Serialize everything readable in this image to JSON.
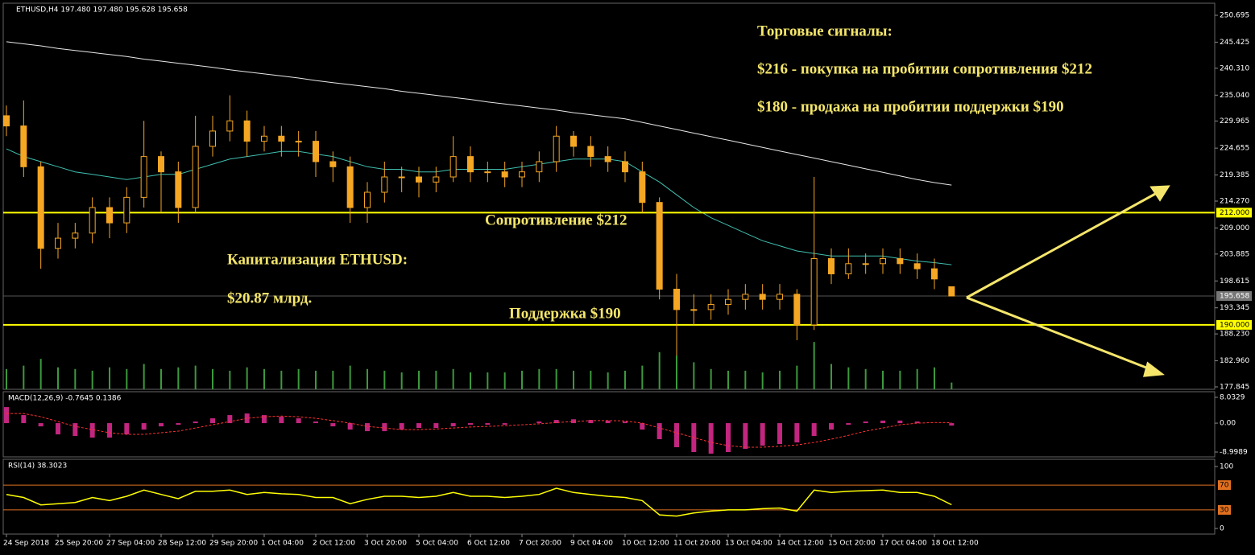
{
  "chart_data": [
    {
      "type": "candlestick",
      "header": "ETHUSD,H4  197.480 197.480 195.628 195.658",
      "categories": [
        "24 Sep 2018",
        null,
        null,
        "25 Sep 20:00",
        null,
        null,
        "27 Sep 04:00",
        null,
        null,
        "28 Sep 12:00",
        null,
        null,
        "29 Sep 20:00",
        null,
        null,
        "1 Oct 04:00",
        null,
        null,
        "2 Oct 12:00",
        null,
        null,
        "3 Oct 20:00",
        null,
        null,
        "5 Oct 04:00",
        null,
        null,
        "6 Oct 12:00",
        null,
        null,
        "7 Oct 20:00",
        null,
        null,
        "9 Oct 04:00",
        null,
        null,
        "10 Oct 12:00",
        null,
        null,
        "11 Oct 20:00",
        null,
        null,
        "13 Oct 04:00",
        null,
        null,
        "14 Oct 12:00",
        null,
        null,
        "15 Oct 20:00",
        null,
        null,
        "17 Oct 04:00",
        null,
        null,
        "18 Oct 12:00",
        null
      ],
      "open": [
        231,
        229,
        221,
        205,
        207,
        208,
        213,
        210,
        215,
        223,
        220,
        213,
        225,
        228,
        230,
        226,
        227,
        226,
        226,
        222,
        221,
        213,
        216,
        219,
        219,
        218,
        219,
        223,
        220,
        220,
        219,
        220,
        222,
        227,
        225,
        223,
        222,
        220,
        214,
        197,
        193,
        193,
        194,
        195,
        196,
        195,
        196,
        190,
        203,
        200,
        202,
        202,
        203,
        202,
        201,
        197.48
      ],
      "high": [
        233,
        234,
        222,
        210,
        210,
        215,
        215,
        217,
        230,
        224,
        222,
        231,
        231,
        235,
        232,
        229,
        229,
        228,
        228,
        224,
        223,
        218,
        222,
        221,
        221,
        221,
        227,
        225,
        222,
        222,
        222,
        224,
        229,
        228,
        227,
        225,
        224,
        222,
        215,
        200,
        196,
        196,
        197,
        198,
        198,
        198,
        197,
        219,
        205,
        205,
        204,
        205,
        205,
        204,
        203,
        197.48
      ],
      "low": [
        227,
        219,
        201,
        203,
        205,
        206,
        207,
        208,
        213,
        212,
        210,
        212,
        223,
        226,
        223,
        224,
        223,
        223,
        219,
        218,
        210,
        210,
        214,
        216,
        215,
        216,
        218,
        218,
        218,
        217,
        217,
        218,
        220,
        223,
        221,
        220,
        218,
        212,
        195,
        184,
        190,
        191,
        192,
        193,
        193,
        193,
        187,
        189,
        198,
        199,
        200,
        200,
        200,
        199,
        197,
        195.628
      ],
      "close": [
        229,
        221,
        205,
        207,
        208,
        213,
        210,
        215,
        223,
        220,
        213,
        225,
        228,
        230,
        226,
        227,
        226,
        226,
        222,
        221,
        213,
        216,
        219,
        219,
        218,
        219,
        223,
        220,
        220,
        219,
        220,
        222,
        227,
        225,
        223,
        222,
        220,
        214,
        197,
        193,
        193,
        194,
        195,
        196,
        195,
        196,
        190,
        203,
        200,
        202,
        202,
        203,
        202,
        201,
        199,
        195.658
      ],
      "volume": [
        60,
        70,
        90,
        65,
        60,
        55,
        65,
        60,
        75,
        60,
        65,
        70,
        60,
        55,
        65,
        60,
        55,
        60,
        55,
        55,
        70,
        60,
        55,
        50,
        55,
        55,
        60,
        50,
        50,
        50,
        55,
        60,
        60,
        55,
        55,
        50,
        55,
        70,
        110,
        100,
        80,
        60,
        55,
        55,
        50,
        55,
        70,
        140,
        75,
        65,
        60,
        55,
        55,
        60,
        65,
        20
      ],
      "lines": [
        {
          "color": "#3fbfb0",
          "values": [
            224.5,
            223,
            222,
            221,
            220,
            219.5,
            219,
            218.5,
            219,
            219.5,
            219.5,
            220.5,
            221.5,
            222.5,
            223,
            223.5,
            224,
            224,
            223.5,
            223,
            222,
            221,
            220.5,
            220.5,
            220,
            220,
            220.5,
            220.5,
            220.5,
            220.5,
            221,
            221.5,
            222,
            222.5,
            222.5,
            222.5,
            222,
            220,
            218,
            215.5,
            213,
            211,
            209.5,
            208,
            206.5,
            205.5,
            204.5,
            204,
            203.5,
            203.5,
            203.5,
            203.5,
            203,
            202.5,
            202.2,
            201.8
          ]
        },
        {
          "color": "#e8e8e8",
          "values": [
            245.5,
            245.1,
            244.7,
            244.2,
            243.8,
            243.4,
            243,
            242.6,
            242.1,
            241.7,
            241.3,
            240.9,
            240.5,
            240,
            239.6,
            239.2,
            238.8,
            238.4,
            237.9,
            237.5,
            237.1,
            236.7,
            236.3,
            235.8,
            235.4,
            235,
            234.6,
            234.2,
            233.7,
            233.3,
            232.9,
            232.5,
            232.1,
            231.6,
            231.2,
            230.8,
            230.4,
            229.7,
            229,
            228.3,
            227.6,
            226.9,
            226.2,
            225.5,
            224.8,
            224.1,
            223.4,
            222.7,
            222,
            221.3,
            220.6,
            219.9,
            219.2,
            218.5,
            217.9,
            217.4
          ]
        }
      ],
      "candle_color": "#f5a623",
      "volume_color": "#3c9a3c",
      "ylim": [
        177.37,
        253.06
      ],
      "yticks": [
        {
          "value": 250.695,
          "label": "250.695"
        },
        {
          "value": 245.425,
          "label": "245.425"
        },
        {
          "value": 240.31,
          "label": "240.310"
        },
        {
          "value": 235.04,
          "label": "235.040"
        },
        {
          "value": 229.965,
          "label": "229.965"
        },
        {
          "value": 224.655,
          "label": "224.655"
        },
        {
          "value": 219.385,
          "label": "219.385"
        },
        {
          "value": 214.27,
          "label": "214.270"
        },
        {
          "value": 209,
          "label": "209.000"
        },
        {
          "value": 203.885,
          "label": "203.885"
        },
        {
          "value": 198.615,
          "label": "198.615"
        },
        {
          "value": 193.345,
          "label": "193.345"
        },
        {
          "value": 188.23,
          "label": "188.230"
        },
        {
          "value": 182.96,
          "label": "182.960"
        },
        {
          "value": 177.845,
          "label": "177.845"
        }
      ],
      "hlines": [
        {
          "value": 212,
          "label": "212.000"
        },
        {
          "value": 190,
          "label": "190.000"
        }
      ],
      "hline_color": "#ffff00",
      "current_price": {
        "value": 195.658,
        "label": "195.658"
      },
      "annotations": {
        "title": "Торговые сигналы:",
        "signal_buy": "$216 - покупка на пробитии сопротивления $212",
        "signal_sell": "$180 - продажа на пробитии поддержки $190",
        "resistance": "Сопротивление $212",
        "support": "Поддержка $190",
        "cap_title": "Капитализация ETHUSD:",
        "cap_value": "$20.87 млрд."
      }
    },
    {
      "type": "macd",
      "header": "MACD(12,26,9) -0.7645 0.1386",
      "histogram": [
        5,
        2.5,
        -1,
        -3.5,
        -4,
        -4.5,
        -4.5,
        -3.5,
        -2,
        -1,
        -0.5,
        0.5,
        1.5,
        2.5,
        3,
        2.5,
        2,
        1.5,
        0.5,
        -1,
        -2,
        -2.5,
        -2.5,
        -2,
        -1.5,
        -1.5,
        -1,
        -0.5,
        -0.5,
        -0.5,
        0,
        0.5,
        1,
        1.2,
        1,
        0.8,
        0.5,
        -2,
        -5,
        -7.5,
        -9,
        -9.5,
        -9,
        -8,
        -7,
        -6.5,
        -6,
        -4,
        -2,
        -0.5,
        0.5,
        0.8,
        0.8,
        0.5,
        0,
        -0.7645
      ],
      "signal": [
        3,
        3,
        2,
        0.5,
        -1,
        -2,
        -3,
        -3.5,
        -3.5,
        -3,
        -2.5,
        -1.5,
        -0.5,
        0.5,
        1.5,
        2,
        2.2,
        2,
        1.5,
        0.8,
        0,
        -1,
        -1.5,
        -2,
        -2,
        -1.8,
        -1.5,
        -1.2,
        -1,
        -0.8,
        -0.5,
        -0.2,
        0.2,
        0.5,
        0.8,
        0.8,
        0.7,
        0,
        -1.5,
        -3,
        -4.5,
        -6,
        -7,
        -7.5,
        -7.5,
        -7.2,
        -6.8,
        -6,
        -5,
        -3.8,
        -2.5,
        -1.5,
        -0.5,
        0,
        0.2,
        0.1386
      ],
      "histogram_color": "#c2267f",
      "signal_color": "#ff3030",
      "ylim": [
        -10.5,
        9.78
      ],
      "yticks": [
        8.0329,
        {
          "value": 0,
          "label": "0.00"
        },
        -8.9989
      ]
    },
    {
      "type": "line",
      "header": "RSI(14) 38.3023",
      "values": [
        55,
        50,
        38,
        40,
        42,
        50,
        45,
        52,
        62,
        55,
        48,
        60,
        60,
        62,
        55,
        58,
        56,
        55,
        50,
        50,
        40,
        47,
        52,
        52,
        50,
        52,
        58,
        52,
        52,
        50,
        52,
        55,
        65,
        58,
        55,
        52,
        50,
        45,
        22,
        20,
        25,
        28,
        30,
        30,
        32,
        33,
        28,
        62,
        58,
        60,
        61,
        62,
        58,
        58,
        52,
        38.3023
      ],
      "color": "#ffff00",
      "ylim": [
        -9.1,
        111.7
      ],
      "yticks": [
        100,
        0
      ],
      "levels": [
        70,
        30
      ],
      "level_color": "#e07020"
    }
  ]
}
